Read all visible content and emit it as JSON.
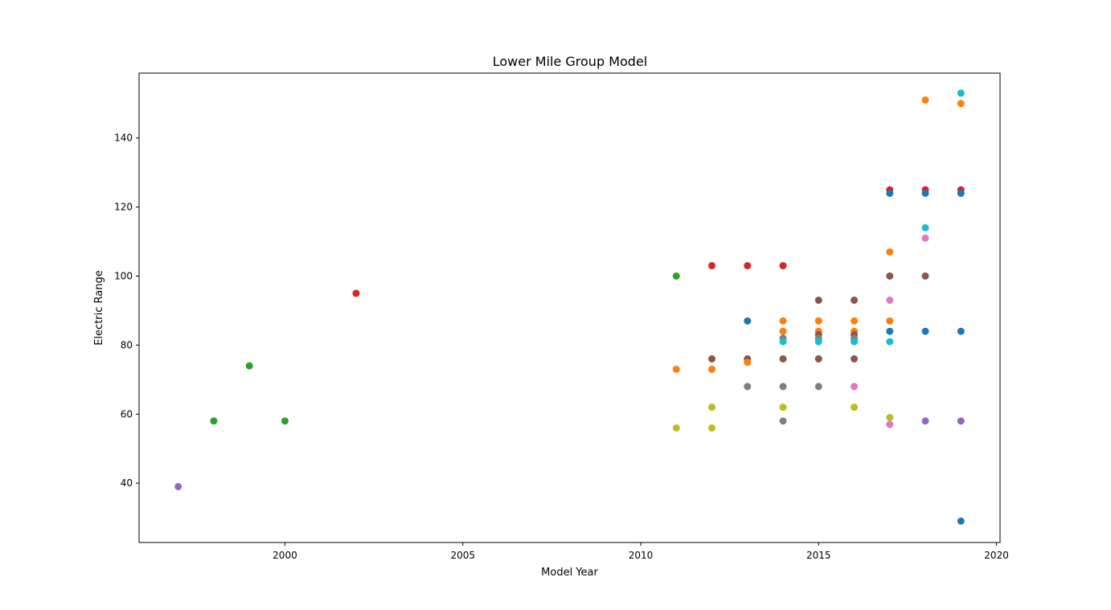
{
  "chart_data": {
    "type": "scatter",
    "title": "Lower Mile Group Model",
    "xlabel": "Model Year",
    "ylabel": "Electric Range",
    "xlim": [
      1995.9,
      2020.1
    ],
    "ylim": [
      22.8,
      158.8
    ],
    "xticks": [
      2000,
      2005,
      2010,
      2015,
      2020
    ],
    "yticks": [
      40,
      60,
      80,
      100,
      120,
      140
    ],
    "grid": false,
    "colors": {
      "blue": "#1f77b4",
      "orange": "#ff7f0e",
      "green": "#2ca02c",
      "red": "#d62728",
      "purple": "#9467bd",
      "brown": "#8c564b",
      "pink": "#e377c2",
      "gray": "#7f7f7f",
      "olive": "#bcbd22",
      "cyan": "#17becf"
    },
    "points": [
      {
        "x": 1997,
        "y": 39,
        "c": "purple"
      },
      {
        "x": 1998,
        "y": 58,
        "c": "green"
      },
      {
        "x": 1999,
        "y": 74,
        "c": "green"
      },
      {
        "x": 2000,
        "y": 58,
        "c": "green"
      },
      {
        "x": 2002,
        "y": 95,
        "c": "red"
      },
      {
        "x": 2011,
        "y": 100,
        "c": "green"
      },
      {
        "x": 2011,
        "y": 73,
        "c": "orange"
      },
      {
        "x": 2011,
        "y": 56,
        "c": "olive"
      },
      {
        "x": 2012,
        "y": 103,
        "c": "red"
      },
      {
        "x": 2012,
        "y": 76,
        "c": "brown"
      },
      {
        "x": 2012,
        "y": 73,
        "c": "orange"
      },
      {
        "x": 2012,
        "y": 62,
        "c": "olive"
      },
      {
        "x": 2012,
        "y": 56,
        "c": "olive"
      },
      {
        "x": 2013,
        "y": 103,
        "c": "red"
      },
      {
        "x": 2013,
        "y": 87,
        "c": "blue"
      },
      {
        "x": 2013,
        "y": 76,
        "c": "brown"
      },
      {
        "x": 2013,
        "y": 75,
        "c": "orange"
      },
      {
        "x": 2013,
        "y": 68,
        "c": "gray"
      },
      {
        "x": 2014,
        "y": 103,
        "c": "red"
      },
      {
        "x": 2014,
        "y": 87,
        "c": "orange"
      },
      {
        "x": 2014,
        "y": 84,
        "c": "orange"
      },
      {
        "x": 2014,
        "y": 82,
        "c": "gray"
      },
      {
        "x": 2014,
        "y": 81,
        "c": "cyan"
      },
      {
        "x": 2014,
        "y": 76,
        "c": "brown"
      },
      {
        "x": 2014,
        "y": 68,
        "c": "gray"
      },
      {
        "x": 2014,
        "y": 62,
        "c": "olive"
      },
      {
        "x": 2014,
        "y": 58,
        "c": "gray"
      },
      {
        "x": 2015,
        "y": 93,
        "c": "brown"
      },
      {
        "x": 2015,
        "y": 87,
        "c": "orange"
      },
      {
        "x": 2015,
        "y": 84,
        "c": "orange"
      },
      {
        "x": 2015,
        "y": 83,
        "c": "brown"
      },
      {
        "x": 2015,
        "y": 82,
        "c": "gray"
      },
      {
        "x": 2015,
        "y": 81,
        "c": "cyan"
      },
      {
        "x": 2015,
        "y": 76,
        "c": "brown"
      },
      {
        "x": 2015,
        "y": 68,
        "c": "gray"
      },
      {
        "x": 2016,
        "y": 93,
        "c": "brown"
      },
      {
        "x": 2016,
        "y": 87,
        "c": "orange"
      },
      {
        "x": 2016,
        "y": 84,
        "c": "orange"
      },
      {
        "x": 2016,
        "y": 83,
        "c": "brown"
      },
      {
        "x": 2016,
        "y": 82,
        "c": "gray"
      },
      {
        "x": 2016,
        "y": 81,
        "c": "cyan"
      },
      {
        "x": 2016,
        "y": 76,
        "c": "brown"
      },
      {
        "x": 2016,
        "y": 68,
        "c": "pink"
      },
      {
        "x": 2016,
        "y": 62,
        "c": "olive"
      },
      {
        "x": 2017,
        "y": 125,
        "c": "red"
      },
      {
        "x": 2017,
        "y": 124,
        "c": "blue"
      },
      {
        "x": 2017,
        "y": 107,
        "c": "orange"
      },
      {
        "x": 2017,
        "y": 100,
        "c": "brown"
      },
      {
        "x": 2017,
        "y": 93,
        "c": "pink"
      },
      {
        "x": 2017,
        "y": 87,
        "c": "orange"
      },
      {
        "x": 2017,
        "y": 84,
        "c": "blue"
      },
      {
        "x": 2017,
        "y": 81,
        "c": "cyan"
      },
      {
        "x": 2017,
        "y": 59,
        "c": "olive"
      },
      {
        "x": 2017,
        "y": 57,
        "c": "pink"
      },
      {
        "x": 2018,
        "y": 151,
        "c": "orange"
      },
      {
        "x": 2018,
        "y": 125,
        "c": "red"
      },
      {
        "x": 2018,
        "y": 124,
        "c": "blue"
      },
      {
        "x": 2018,
        "y": 114,
        "c": "cyan"
      },
      {
        "x": 2018,
        "y": 111,
        "c": "pink"
      },
      {
        "x": 2018,
        "y": 100,
        "c": "brown"
      },
      {
        "x": 2018,
        "y": 84,
        "c": "blue"
      },
      {
        "x": 2018,
        "y": 58,
        "c": "purple"
      },
      {
        "x": 2019,
        "y": 153,
        "c": "cyan"
      },
      {
        "x": 2019,
        "y": 150,
        "c": "orange"
      },
      {
        "x": 2019,
        "y": 125,
        "c": "red"
      },
      {
        "x": 2019,
        "y": 124,
        "c": "blue"
      },
      {
        "x": 2019,
        "y": 84,
        "c": "blue"
      },
      {
        "x": 2019,
        "y": 58,
        "c": "purple"
      },
      {
        "x": 2019,
        "y": 29,
        "c": "blue"
      }
    ]
  }
}
